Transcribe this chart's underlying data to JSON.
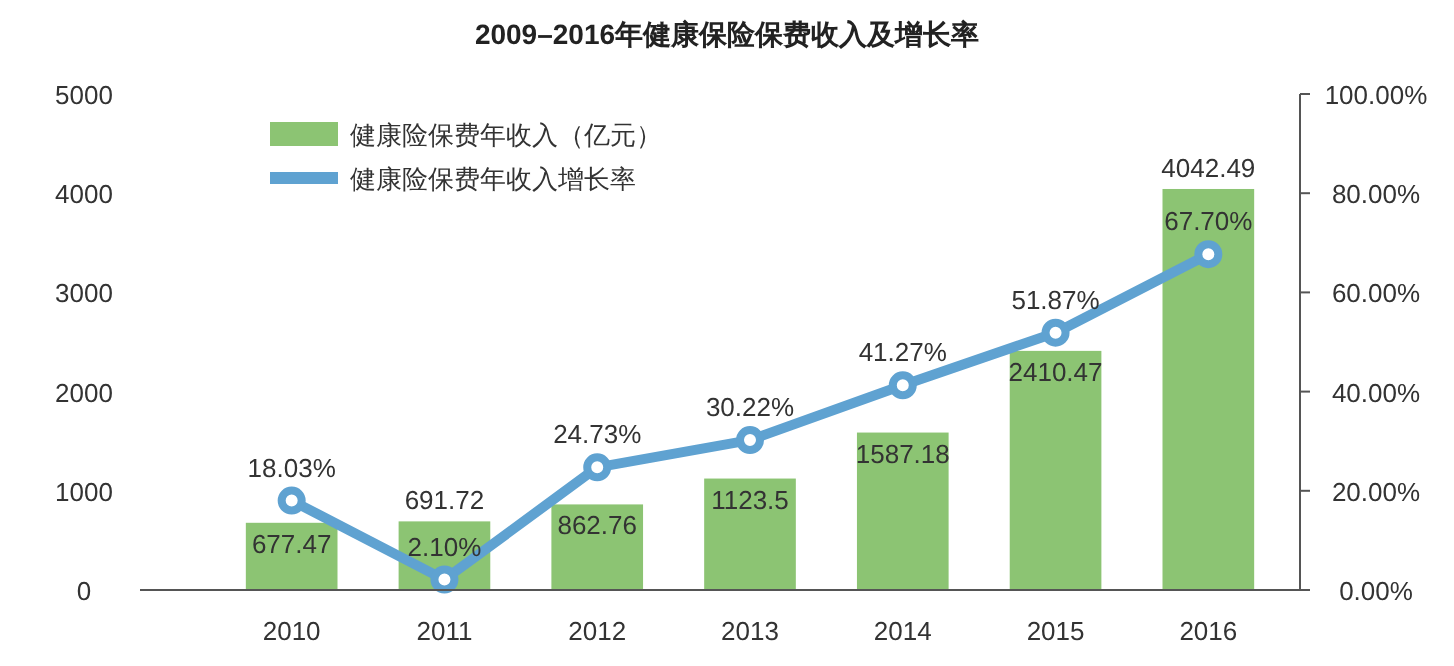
{
  "chart_data": {
    "type": "bar",
    "title": "2009–2016年健康保险保费收入及增长率",
    "categories": [
      "2010",
      "2011",
      "2012",
      "2013",
      "2014",
      "2015",
      "2016"
    ],
    "series": [
      {
        "name": "健康险保费年收入（亿元）",
        "color": "#8cc473",
        "values": [
          677.47,
          691.72,
          862.76,
          1123.5,
          1587.18,
          2410.47,
          4042.49
        ]
      },
      {
        "name": "健康险保费年收入增长率",
        "type": "line",
        "axis": "y2",
        "color": "#5fa2d1",
        "marker": "circle",
        "values": [
          18.03,
          2.1,
          24.73,
          30.22,
          41.27,
          51.87,
          67.7
        ],
        "value_labels": [
          "18.03%",
          "2.10%",
          "24.73%",
          "30.22%",
          "41.27%",
          "51.87%",
          "67.70%"
        ]
      }
    ],
    "data_labels": true,
    "ylim": [
      0,
      5000
    ],
    "yticks": [
      0,
      1000,
      2000,
      3000,
      4000,
      5000
    ],
    "y2lim": [
      0,
      100
    ],
    "y2ticks": [
      {
        "value": 0,
        "label": "0.00%"
      },
      {
        "value": 20,
        "label": "20.00%"
      },
      {
        "value": 40,
        "label": "40.00%"
      },
      {
        "value": 60,
        "label": "60.00%"
      },
      {
        "value": 80,
        "label": "80.00%"
      },
      {
        "value": 100,
        "label": "100.00%"
      }
    ],
    "grid": false,
    "legend": "top left"
  }
}
